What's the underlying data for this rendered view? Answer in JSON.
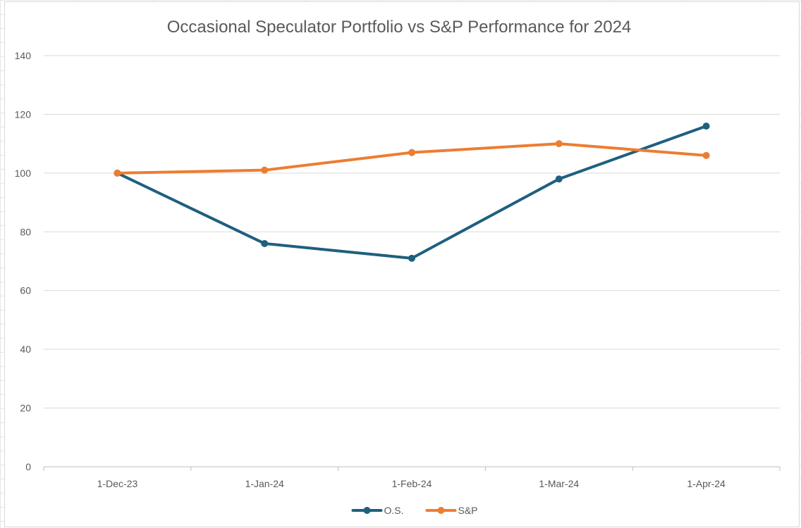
{
  "chart_data": {
    "type": "line",
    "title": "Occasional Speculator Portfolio vs S&P Performance for 2024",
    "xlabel": "",
    "ylabel": "",
    "categories": [
      "1-Dec-23",
      "1-Jan-24",
      "1-Feb-24",
      "1-Mar-24",
      "1-Apr-24"
    ],
    "ylim": [
      0,
      140
    ],
    "yticks": [
      0,
      20,
      40,
      60,
      80,
      100,
      120,
      140
    ],
    "grid": true,
    "legend_position": "bottom",
    "series": [
      {
        "name": "O.S.",
        "values": [
          100,
          76,
          71,
          98,
          116
        ],
        "color": "#1f5f7f"
      },
      {
        "name": "S&P",
        "values": [
          100,
          101,
          107,
          110,
          106
        ],
        "color": "#ed7d31"
      }
    ]
  }
}
